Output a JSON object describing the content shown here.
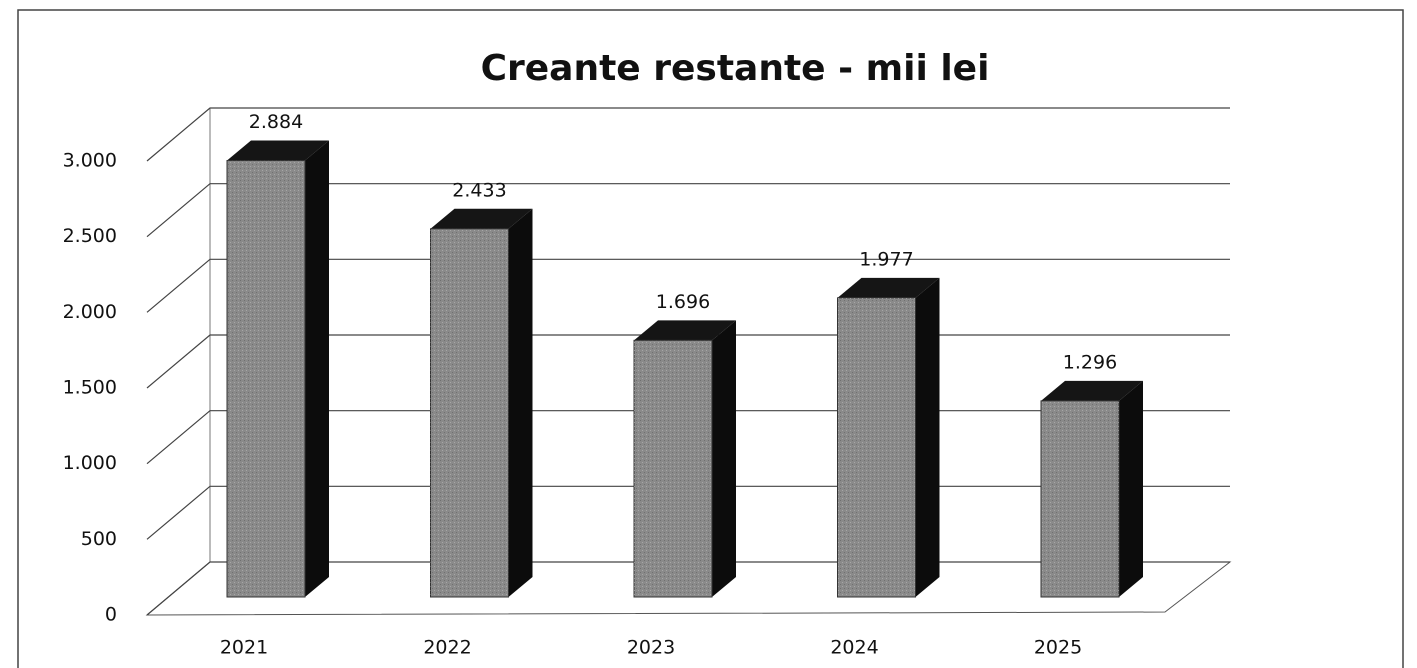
{
  "chart_data": {
    "type": "bar",
    "title": "Creante restante - mii lei",
    "categories": [
      "2021",
      "2022",
      "2023",
      "2024",
      "2025"
    ],
    "values": [
      2884,
      2433,
      1696,
      1977,
      1296
    ],
    "value_labels": [
      "2.884",
      "2.433",
      "1.696",
      "1.977",
      "1.296"
    ],
    "color": "#8a8a8a",
    "ylim": [
      0,
      3000
    ],
    "yticks": [
      0,
      500,
      {
        "value": 1000,
        "label": "1.000"
      },
      {
        "value": 1500,
        "label": "1.500"
      },
      {
        "value": 2000,
        "label": "2.000"
      },
      {
        "value": 2500,
        "label": "2.500"
      },
      {
        "value": 3000,
        "label": "3.000"
      }
    ],
    "grid": true
  }
}
